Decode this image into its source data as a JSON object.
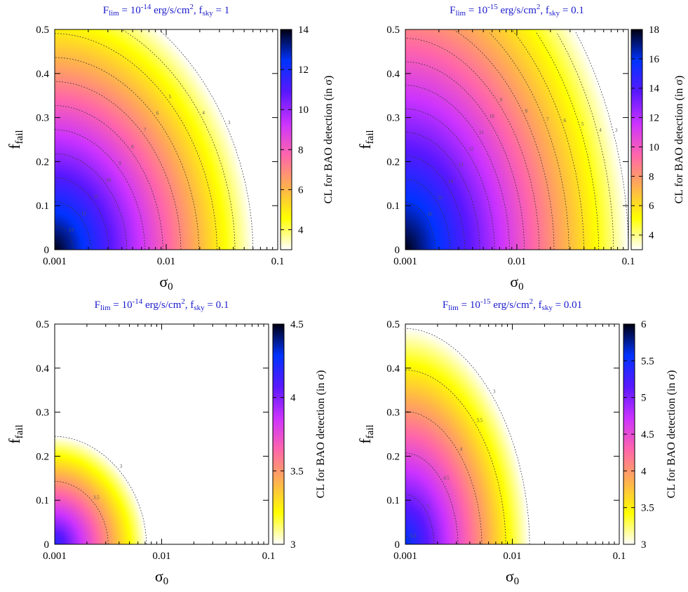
{
  "figure": {
    "panels": [
      {
        "id": "p1",
        "title_parts": [
          {
            "t": "F"
          },
          {
            "t": "lim",
            "sub": true
          },
          {
            "t": " = 10"
          },
          {
            "t": "-14",
            "sup": true
          },
          {
            "t": " erg/s/cm"
          },
          {
            "t": "2",
            "sup": true
          },
          {
            "t": ", f"
          },
          {
            "t": "sky",
            "sub": true
          },
          {
            "t": " = 1"
          }
        ],
        "xlabel": "σ",
        "xlabel_sub": "0",
        "ylabel": "f",
        "ylabel_sub": "fail",
        "cb_label": "CL for BAO detection (in σ)",
        "cb_ticks": [
          "4",
          "6",
          "8",
          "10",
          "12",
          "14"
        ],
        "xticks": [
          "0.001",
          "0.01",
          "0.1"
        ],
        "yticks": [
          "0",
          "0.1",
          "0.2",
          "0.3",
          "0.4",
          "0.5"
        ]
      },
      {
        "id": "p2",
        "title_parts": [
          {
            "t": "F"
          },
          {
            "t": "lim",
            "sub": true
          },
          {
            "t": " = 10"
          },
          {
            "t": "-15",
            "sup": true
          },
          {
            "t": " erg/s/cm"
          },
          {
            "t": "2",
            "sup": true
          },
          {
            "t": ", f"
          },
          {
            "t": "sky",
            "sub": true
          },
          {
            "t": " = 0.1"
          }
        ],
        "xlabel": "σ",
        "xlabel_sub": "0",
        "ylabel": "f",
        "ylabel_sub": "fail",
        "cb_label": "CL for BAO detection (in σ)",
        "cb_ticks": [
          "4",
          "6",
          "8",
          "10",
          "12",
          "14",
          "16",
          "18"
        ],
        "xticks": [
          "0.001",
          "0.01",
          "0.1"
        ],
        "yticks": [
          "0",
          "0.1",
          "0.2",
          "0.3",
          "0.4",
          "0.5"
        ]
      },
      {
        "id": "p3",
        "title_parts": [
          {
            "t": "F"
          },
          {
            "t": "lim",
            "sub": true
          },
          {
            "t": " = 10"
          },
          {
            "t": "-14",
            "sup": true
          },
          {
            "t": " erg/s/cm"
          },
          {
            "t": "2",
            "sup": true
          },
          {
            "t": ", f"
          },
          {
            "t": "sky",
            "sub": true
          },
          {
            "t": " = 0.1"
          }
        ],
        "xlabel": "σ",
        "xlabel_sub": "0",
        "ylabel": "f",
        "ylabel_sub": "fail",
        "cb_label": "CL for BAO detection (in σ)",
        "cb_ticks": [
          "3",
          "3.5",
          "4",
          "4.5"
        ],
        "xticks": [
          "0.001",
          "0.01",
          "0.1"
        ],
        "yticks": [
          "0",
          "0.1",
          "0.2",
          "0.3",
          "0.4",
          "0.5"
        ]
      },
      {
        "id": "p4",
        "title_parts": [
          {
            "t": "F"
          },
          {
            "t": "lim",
            "sub": true
          },
          {
            "t": " = 10"
          },
          {
            "t": "-15",
            "sup": true
          },
          {
            "t": " erg/s/cm"
          },
          {
            "t": "2",
            "sup": true
          },
          {
            "t": ", f"
          },
          {
            "t": "sky",
            "sub": true
          },
          {
            "t": " = 0.01"
          }
        ],
        "xlabel": "σ",
        "xlabel_sub": "0",
        "ylabel": "f",
        "ylabel_sub": "fail",
        "cb_label": "CL for BAO detection (in σ)",
        "cb_ticks": [
          "3",
          "3.5",
          "4",
          "4.5",
          "5",
          "5.5",
          "6"
        ],
        "xticks": [
          "0.001",
          "0.01",
          "0.1"
        ],
        "yticks": [
          "0",
          "0.1",
          "0.2",
          "0.3",
          "0.4",
          "0.5"
        ]
      }
    ]
  },
  "chart_data": [
    {
      "type": "heatmap",
      "panel": "p1",
      "title": "F_lim = 10^-14 erg/s/cm^2, f_sky = 1",
      "xlabel": "σ0",
      "ylabel": "f_fail",
      "xscale": "log",
      "xlim": [
        0.001,
        0.1
      ],
      "ylim": [
        0,
        0.5
      ],
      "colorbar_range": [
        3,
        14
      ],
      "colorbar_label": "CL for BAO detection (in σ)",
      "surface": {
        "peak": 14,
        "min": 3,
        "cutoff": 3,
        "x_edge_at_y0": 0.06,
        "y_edge_at_x0": 0.6,
        "shape_exponent": 1.9
      },
      "contour_levels": [
        3,
        4,
        5,
        6,
        7,
        8,
        9,
        10,
        11,
        12,
        13
      ],
      "colormap": [
        "#ffffff",
        "#ffff00",
        "#ffb050",
        "#ff66aa",
        "#cc33ff",
        "#5a18ff",
        "#0033ff",
        "#000010"
      ]
    },
    {
      "type": "heatmap",
      "panel": "p2",
      "title": "F_lim = 10^-15 erg/s/cm^2, f_sky = 0.1",
      "xlabel": "σ0",
      "ylabel": "f_fail",
      "xscale": "log",
      "xlim": [
        0.001,
        0.1
      ],
      "ylim": [
        0,
        0.5
      ],
      "colorbar_range": [
        3,
        18
      ],
      "colorbar_label": "CL for BAO detection (in σ)",
      "surface": {
        "peak": 18,
        "min": 3,
        "cutoff": 3,
        "x_edge_at_y0": 0.1,
        "y_edge_at_x0": 0.8,
        "shape_exponent": 1.9
      },
      "contour_levels": [
        3,
        4,
        5,
        6,
        7,
        8,
        9,
        10,
        11,
        12,
        13,
        14,
        15,
        16
      ],
      "colormap": [
        "#ffffff",
        "#ffff00",
        "#ffb050",
        "#ff66aa",
        "#cc33ff",
        "#5a18ff",
        "#0033ff",
        "#000010"
      ]
    },
    {
      "type": "heatmap",
      "panel": "p3",
      "title": "F_lim = 10^-14 erg/s/cm^2, f_sky = 0.1",
      "xlabel": "σ0",
      "ylabel": "f_fail",
      "xscale": "log",
      "xlim": [
        0.001,
        0.1
      ],
      "ylim": [
        0,
        0.5
      ],
      "colorbar_range": [
        3,
        4.5
      ],
      "colorbar_label": "CL for BAO detection (in σ)",
      "surface": {
        "peak": 4.2,
        "min": 3,
        "cutoff": 3,
        "x_edge_at_y0": 0.0072,
        "y_edge_at_x0": 0.245,
        "shape_exponent": 1.9
      },
      "contour_levels": [
        3,
        3.5
      ],
      "colormap": [
        "#ffffff",
        "#ffff00",
        "#ffb050",
        "#ff66aa",
        "#cc33ff",
        "#5a18ff",
        "#0033ff",
        "#000010"
      ]
    },
    {
      "type": "heatmap",
      "panel": "p4",
      "title": "F_lim = 10^-15 erg/s/cm^2, f_sky = 0.01",
      "xlabel": "σ0",
      "ylabel": "f_fail",
      "xscale": "log",
      "xlim": [
        0.001,
        0.1
      ],
      "ylim": [
        0,
        0.5
      ],
      "colorbar_range": [
        3,
        6
      ],
      "colorbar_label": "CL for BAO detection (in σ)",
      "surface": {
        "peak": 5.6,
        "min": 3,
        "cutoff": 3,
        "x_edge_at_y0": 0.0145,
        "y_edge_at_x0": 0.49,
        "shape_exponent": 1.9
      },
      "contour_levels": [
        3,
        3.5,
        4,
        4.5,
        5,
        5.5
      ],
      "colormap": [
        "#ffffff",
        "#ffff00",
        "#ffb050",
        "#ff66aa",
        "#cc33ff",
        "#5a18ff",
        "#0033ff",
        "#000010"
      ]
    }
  ]
}
